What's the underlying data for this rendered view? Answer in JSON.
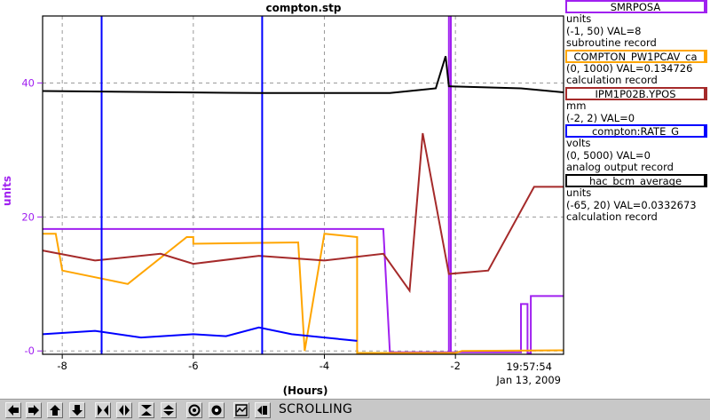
{
  "chart_data": {
    "type": "line",
    "title": "compton.stp",
    "xlabel": "(Hours)",
    "ylabel": "units",
    "xlim": [
      -8.3,
      -0.35
    ],
    "ylim": [
      -0.5,
      50
    ],
    "x_ticks": [
      {
        "value": -8,
        "label": "-8"
      },
      {
        "value": -6,
        "label": "-6"
      },
      {
        "value": -4,
        "label": "-4"
      },
      {
        "value": -2,
        "label": "-2"
      }
    ],
    "y_ticks": [
      {
        "value": 0,
        "label": "-0"
      },
      {
        "value": 20,
        "label": "20"
      },
      {
        "value": 40,
        "label": "40"
      }
    ],
    "time_label": "19:57:54",
    "date_label": "Jan 13, 2009",
    "grid": true,
    "legend_position": "right",
    "series": [
      {
        "name": "SMRPOSA",
        "color": "#a020f0",
        "segments": [
          [
            [
              -8.3,
              18.2
            ],
            [
              -3.1,
              18.2
            ],
            [
              -3.0,
              -0.2
            ],
            [
              -1.0,
              -0.2
            ],
            [
              -1.0,
              7.0
            ],
            [
              -0.9,
              7.0
            ],
            [
              -0.9,
              -0.3
            ],
            [
              -0.85,
              -0.3
            ],
            [
              -0.85,
              8.2
            ],
            [
              -0.35,
              8.2
            ]
          ],
          [
            [
              -2.1,
              50
            ],
            [
              -2.1,
              -0.5
            ]
          ],
          [
            [
              -2.07,
              50
            ],
            [
              -2.07,
              -0.5
            ]
          ]
        ]
      },
      {
        "name": "COMPTON_PW1PCAV_ca",
        "color": "#ffa500",
        "segments": [
          [
            [
              -8.3,
              17.5
            ],
            [
              -8.1,
              17.5
            ],
            [
              -8.0,
              12.0
            ],
            [
              -7.0,
              10.0
            ],
            [
              -6.1,
              17.0
            ],
            [
              -6.0,
              17.0
            ],
            [
              -6.0,
              16.0
            ],
            [
              -4.4,
              16.2
            ],
            [
              -4.3,
              0.0
            ],
            [
              -4.0,
              17.5
            ],
            [
              -3.5,
              17.0
            ],
            [
              -3.5,
              -0.3
            ],
            [
              -2.0,
              -0.3
            ],
            [
              -1.9,
              0.0
            ],
            [
              -0.35,
              0.1
            ]
          ]
        ]
      },
      {
        "name": "IPM1P02B.YPOS",
        "color": "#a52a2a",
        "segments": [
          [
            [
              -8.3,
              15.0
            ],
            [
              -7.5,
              13.5
            ],
            [
              -6.5,
              14.5
            ],
            [
              -6.0,
              13.0
            ],
            [
              -5.0,
              14.2
            ],
            [
              -4.0,
              13.5
            ],
            [
              -3.1,
              14.5
            ],
            [
              -2.7,
              9.0
            ],
            [
              -2.5,
              32.5
            ],
            [
              -2.1,
              11.5
            ],
            [
              -1.5,
              12.0
            ],
            [
              -0.8,
              24.5
            ],
            [
              -0.35,
              24.5
            ]
          ]
        ]
      },
      {
        "name": "compton:RATE_G",
        "color": "#0000ff",
        "segments": [
          [
            [
              -8.3,
              2.5
            ],
            [
              -7.5,
              3.0
            ],
            [
              -6.8,
              2.0
            ],
            [
              -6.0,
              2.5
            ],
            [
              -5.5,
              2.2
            ],
            [
              -5.0,
              3.5
            ],
            [
              -4.5,
              2.5
            ],
            [
              -4.0,
              2.0
            ],
            [
              -3.5,
              1.5
            ]
          ],
          [
            [
              -7.4,
              50
            ],
            [
              -7.4,
              -0.5
            ]
          ],
          [
            [
              -4.95,
              50
            ],
            [
              -4.95,
              -0.5
            ]
          ]
        ]
      },
      {
        "name": "hac_bcm_average",
        "color": "#000000",
        "segments": [
          [
            [
              -8.3,
              38.8
            ],
            [
              -5.0,
              38.5
            ],
            [
              -3.0,
              38.5
            ],
            [
              -2.5,
              39.0
            ],
            [
              -2.3,
              39.2
            ],
            [
              -2.15,
              44.0
            ],
            [
              -2.1,
              39.5
            ],
            [
              -1.0,
              39.2
            ],
            [
              -0.35,
              38.6
            ]
          ]
        ]
      }
    ]
  },
  "legend": {
    "items": [
      {
        "name": "SMRPOSA",
        "color": "#a020f0",
        "lines": [
          "units",
          "(-1, 50) VAL=8",
          "subroutine record"
        ]
      },
      {
        "name": "COMPTON_PW1PCAV_ca",
        "color": "#ffa500",
        "lines": [
          "(0, 1000) VAL=0.134726",
          "calculation record"
        ]
      },
      {
        "name": "IPM1P02B.YPOS",
        "color": "#a52a2a",
        "lines": [
          "mm",
          "(-2, 2) VAL=0"
        ]
      },
      {
        "name": "compton:RATE_G",
        "color": "#0000ff",
        "lines": [
          "volts",
          "(0, 5000) VAL=0",
          "analog output record"
        ]
      },
      {
        "name": "hac_bcm_average",
        "color": "#000000",
        "lines": [
          "units",
          "(-65, 20) VAL=0.0332673",
          "calculation record"
        ]
      }
    ]
  },
  "toolbar": {
    "status": "SCROLLING",
    "buttons": [
      {
        "name": "scroll-left-icon"
      },
      {
        "name": "scroll-right-icon"
      },
      {
        "name": "scroll-up-icon"
      },
      {
        "name": "scroll-down-icon"
      },
      {
        "name": "compress-horizontal-icon"
      },
      {
        "name": "expand-horizontal-icon"
      },
      {
        "name": "compress-vertical-icon"
      },
      {
        "name": "expand-vertical-icon"
      },
      {
        "name": "target-icon"
      },
      {
        "name": "record-icon"
      },
      {
        "name": "auto-scale-icon"
      },
      {
        "name": "scroll-mode-icon"
      }
    ]
  }
}
